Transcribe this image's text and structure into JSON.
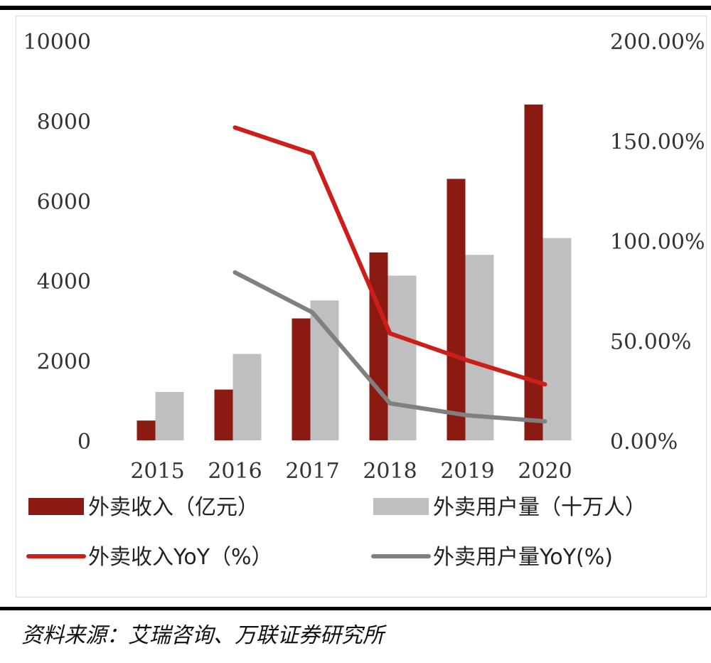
{
  "chart_data": {
    "type": "bar",
    "categories": [
      "2015",
      "2016",
      "2017",
      "2018",
      "2019",
      "2020"
    ],
    "series": [
      {
        "name": "外卖收入（亿元）",
        "type": "bar",
        "axis": "left",
        "color": "#8b1a12",
        "values": [
          495,
          1270,
          3050,
          4700,
          6540,
          8400
        ]
      },
      {
        "name": "外卖用户量（十万人）",
        "type": "bar",
        "axis": "left",
        "color": "#bfbfbf",
        "values": [
          1210,
          2160,
          3500,
          4120,
          4640,
          5060
        ]
      },
      {
        "name": "外卖收入YoY（%）",
        "type": "line",
        "axis": "right",
        "color": "#cc1f1a",
        "values": [
          null,
          156.5,
          143.5,
          53.5,
          40.0,
          28.0
        ]
      },
      {
        "name": "外卖用户量YoY(%)",
        "type": "line",
        "axis": "right",
        "color": "#808080",
        "values": [
          null,
          84.0,
          64.0,
          18.5,
          12.5,
          9.5
        ]
      }
    ],
    "y_left": {
      "min": 0,
      "max": 10000,
      "ticks": [
        "0",
        "2000",
        "4000",
        "6000",
        "8000",
        "10000"
      ]
    },
    "y_right": {
      "min": 0,
      "max": 200,
      "ticks": [
        "0.00%",
        "50.00%",
        "100.00%",
        "150.00%",
        "200.00%"
      ]
    },
    "grid": false,
    "legend_position": "bottom"
  },
  "source_text": "资料来源：艾瑞咨询、万联证券研究所"
}
